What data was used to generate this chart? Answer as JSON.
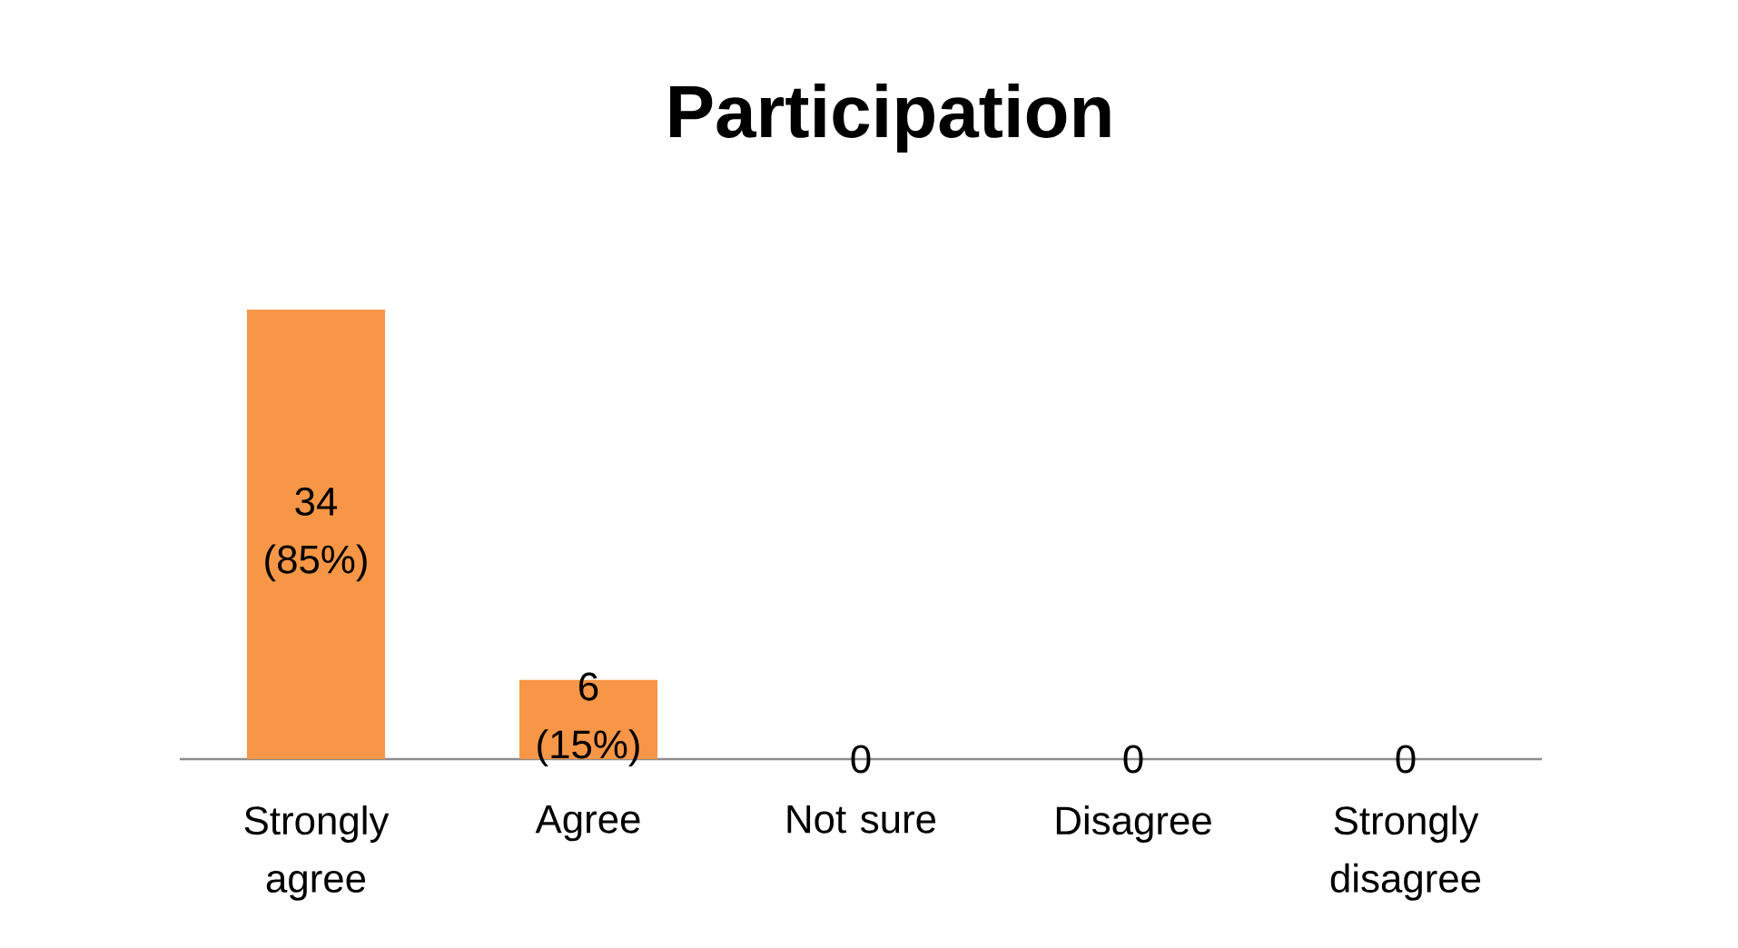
{
  "chart_data": {
    "type": "bar",
    "title": "Participation",
    "categories": [
      "Strongly agree",
      "Agree",
      "Not sure",
      "Disagree",
      "Strongly disagree"
    ],
    "values": [
      34,
      6,
      0,
      0,
      0
    ],
    "value_labels": [
      "34 (85%)",
      "6 (15%)",
      "0",
      "0",
      "0"
    ],
    "color": "#f79646",
    "tick_labels": "x"
  }
}
